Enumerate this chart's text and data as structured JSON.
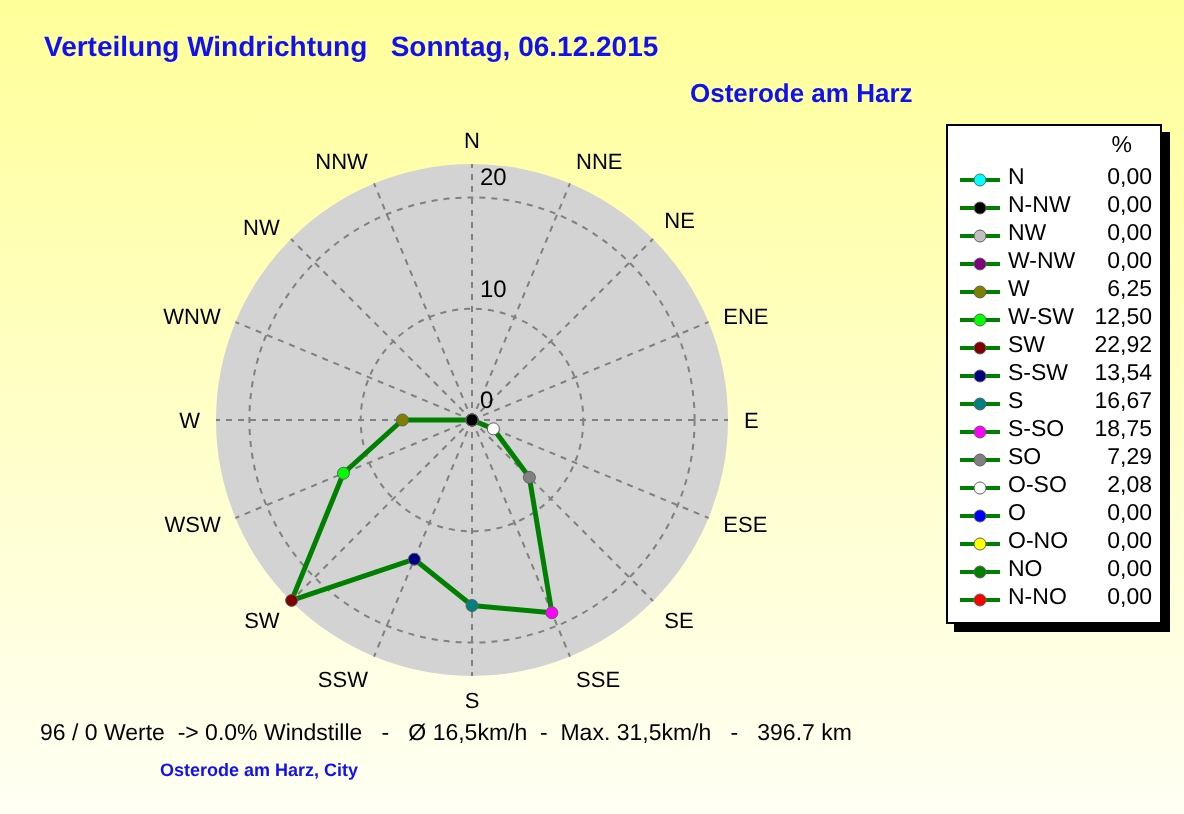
{
  "chart_data": [
    {
      "type": "radar",
      "title": "Verteilung Windrichtung   Sonntag, 06.12.2015",
      "subtitle": "Osterode am Harz",
      "categories": [
        "N",
        "NNE",
        "NE",
        "ENE",
        "E",
        "ESE",
        "SE",
        "SSE",
        "S",
        "SSW",
        "SW",
        "WSW",
        "W",
        "WNW",
        "NW",
        "NNW"
      ],
      "series": [
        {
          "color": "#008000",
          "values": [
            0,
            0,
            0,
            0,
            0,
            2.08,
            7.29,
            18.75,
            16.67,
            13.54,
            22.92,
            12.5,
            6.25,
            0,
            0,
            0
          ],
          "colors": [
            "#00ffff",
            "#ff0000",
            "#008000",
            "#ffff00",
            "#0000ff",
            "#ffffff",
            "#808080",
            "#ff00ff",
            "#008080",
            "#000080",
            "#800000",
            "#00ff00",
            "#808000",
            "#800080",
            "#c0c0c0",
            "#000000"
          ]
        }
      ],
      "ylim": [
        0,
        23
      ],
      "yticks": [
        0,
        10,
        20
      ],
      "grid": true,
      "marker": "circle",
      "annotations": [
        "96 / 0 Werte  -> 0.0% Windstille   -   Ø 16,5km/h  -  Max. 31,5km/h   -   396.7 km",
        "Osterode am Harz, City"
      ]
    },
    {
      "type": "other",
      "legend_title": "%",
      "categories": [
        "N",
        "N-NW",
        "NW",
        "W-NW",
        "W",
        "W-SW",
        "SW",
        "S-SW",
        "S",
        "S-SO",
        "SO",
        "O-SO",
        "O",
        "O-NO",
        "NO",
        "N-NO"
      ],
      "colors": [
        "#00ffff",
        "#000000",
        "#c0c0c0",
        "#800080",
        "#808000",
        "#00ff00",
        "#800000",
        "#000080",
        "#008080",
        "#ff00ff",
        "#808080",
        "#ffffff",
        "#0000ff",
        "#ffff00",
        "#008000",
        "#ff0000"
      ],
      "value_labels": [
        "0,00",
        "0,00",
        "0,00",
        "0,00",
        "6,25",
        "12,50",
        "22,92",
        "13,54",
        "16,67",
        "18,75",
        "7,29",
        "2,08",
        "0,00",
        "0,00",
        "0,00",
        "0,00"
      ]
    }
  ]
}
